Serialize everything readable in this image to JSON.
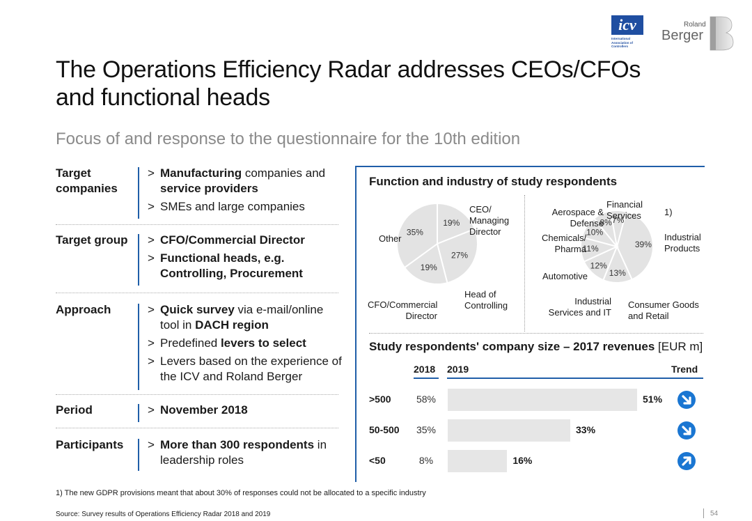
{
  "header": {
    "title": "The Operations Efficiency Radar addresses CEOs/CFOs and functional heads",
    "subtitle": "Focus of and response to the questionnaire for the 10th edition",
    "logo_icv_text": "icv",
    "logo_icv_sub": "International Association of Controllers",
    "logo_rb_small": "Roland",
    "logo_rb_big": "Berger"
  },
  "left": {
    "rows": [
      {
        "label": "Target companies",
        "items": [
          [
            {
              "t": "Manufacturing",
              "b": true
            },
            {
              "t": " companies and ",
              "b": false
            },
            {
              "t": "service providers",
              "b": true
            }
          ],
          [
            {
              "t": "SMEs and large companies",
              "b": false
            }
          ]
        ]
      },
      {
        "label": "Target group",
        "items": [
          [
            {
              "t": "CFO/Commercial Director",
              "b": true
            }
          ],
          [
            {
              "t": "Functional heads, e.g. Controlling, Procurement",
              "b": true
            }
          ]
        ]
      },
      {
        "label": "Approach",
        "items": [
          [
            {
              "t": "Quick survey",
              "b": true
            },
            {
              "t": " via e-mail/online tool in ",
              "b": false
            },
            {
              "t": "DACH region",
              "b": true
            }
          ],
          [
            {
              "t": "Predefined ",
              "b": false
            },
            {
              "t": "levers to select",
              "b": true
            }
          ],
          [
            {
              "t": "Levers based on the experience of the ICV and Roland Berger",
              "b": false
            }
          ]
        ]
      },
      {
        "label": "Period",
        "items": [
          [
            {
              "t": "November 2018",
              "b": true
            }
          ]
        ]
      },
      {
        "label": "Participants",
        "items": [
          [
            {
              "t": "More than 300 respondents",
              "b": true
            },
            {
              "t": " in leadership roles",
              "b": false
            }
          ]
        ]
      }
    ]
  },
  "panel": {
    "title1": "Function and industry of study respondents",
    "footnote_marker": "1)",
    "title2_bold": "Study respondents' company size – 2017 revenues",
    "title2_unit": " [EUR m]",
    "col_2018": "2018",
    "col_2019": "2019",
    "col_trend": "Trend"
  },
  "chart_data": [
    {
      "type": "pie",
      "title": "Function",
      "labels": [
        "CEO/ Managing Director",
        "Head of Controlling",
        "CFO/Commercial Director",
        "Other"
      ],
      "values": [
        19,
        27,
        19,
        35
      ],
      "value_labels": [
        "19%",
        "27%",
        "19%",
        "35%"
      ]
    },
    {
      "type": "pie",
      "title": "Industry",
      "labels": [
        "Industrial Products",
        "Consumer Goods and Retail",
        "Industrial Services and IT",
        "Automotive",
        "Chemicals/ Pharma",
        "Aerospace & Defense",
        "Financial Services"
      ],
      "values": [
        39,
        13,
        12,
        11,
        10,
        8,
        7
      ],
      "value_labels": [
        "39%",
        "13%",
        "12%",
        "11%",
        "10%",
        "8%",
        "7%"
      ]
    },
    {
      "type": "bar",
      "title": "Study respondents' company size – 2017 revenues [EUR m]",
      "categories": [
        ">500",
        "50-500",
        "<50"
      ],
      "series": [
        {
          "name": "2018",
          "values": [
            58,
            35,
            8
          ],
          "labels": [
            "58%",
            "35%",
            "8%"
          ]
        },
        {
          "name": "2019",
          "values": [
            51,
            33,
            16
          ],
          "labels": [
            "51%",
            "33%",
            "16%"
          ]
        }
      ],
      "trend": [
        "down",
        "down",
        "up"
      ]
    }
  ],
  "footer": {
    "footnote": "1) The new GDPR provisions meant that about 30% of responses could not be allocated to a specific industry",
    "source": "Source: Survey results of Operations Efficiency Radar 2018 and 2019",
    "page": "54"
  }
}
